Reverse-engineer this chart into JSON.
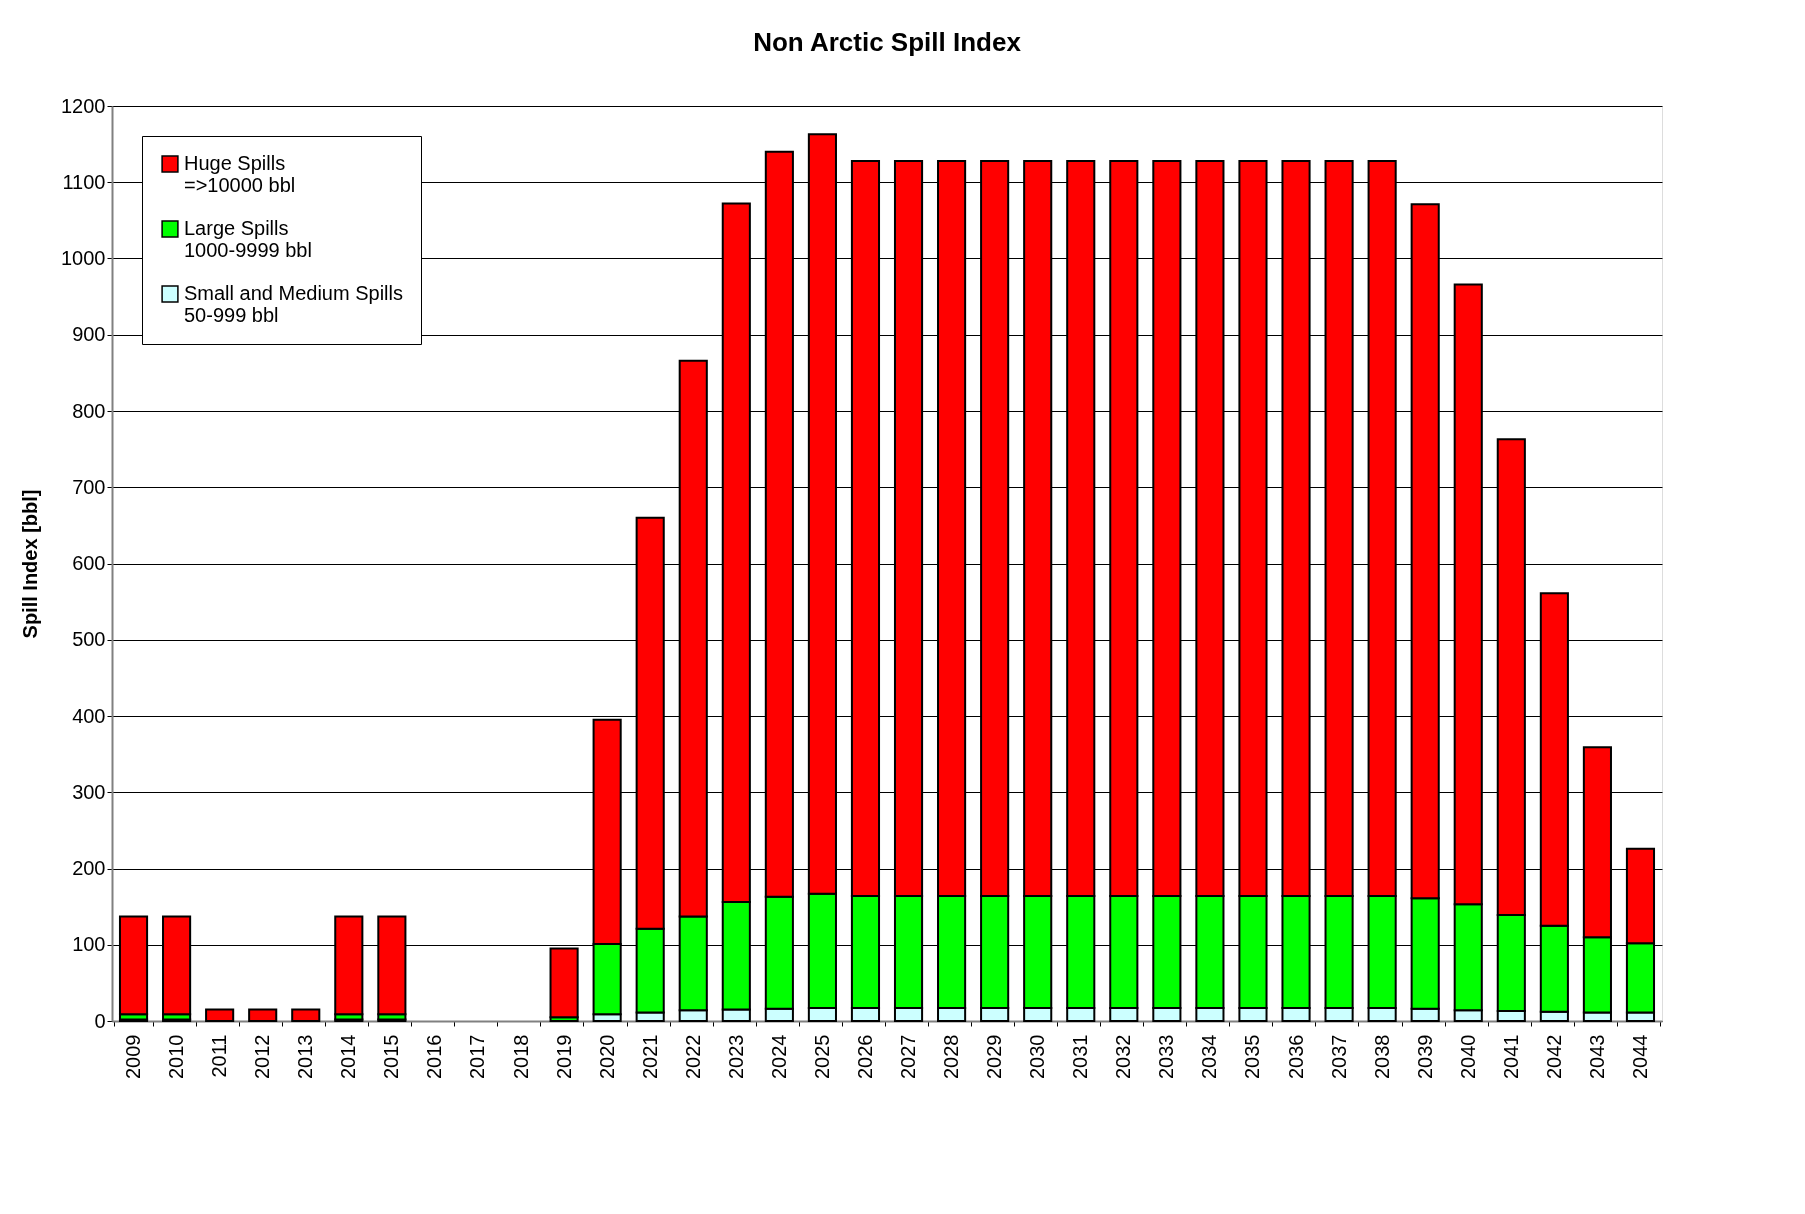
{
  "chart_data": {
    "type": "bar",
    "title": "Non Arctic Spill Index",
    "ylabel": "Spill Index [bbl]",
    "categories": [
      "2009",
      "2010",
      "2011",
      "2012",
      "2013",
      "2014",
      "2015",
      "2016",
      "2017",
      "2018",
      "2019",
      "2020",
      "2021",
      "2022",
      "2023",
      "2024",
      "2025",
      "2026",
      "2027",
      "2028",
      "2029",
      "2030",
      "2031",
      "2032",
      "2033",
      "2034",
      "2035",
      "2036",
      "2037",
      "2038",
      "2039",
      "2040",
      "2041",
      "2042",
      "2043",
      "2044"
    ],
    "stacked": true,
    "series": [
      {
        "name": "Small and Medium Spills\n50-999 bbl",
        "color": "#ccffff",
        "values": [
          2,
          2,
          null,
          null,
          null,
          2,
          2,
          0,
          0,
          0,
          null,
          9,
          11,
          14,
          15,
          16,
          17,
          17,
          17,
          17,
          17,
          17,
          17,
          17,
          17,
          17,
          17,
          17,
          17,
          17,
          16,
          14,
          13,
          12,
          11,
          11
        ]
      },
      {
        "name": "Large Spills\n1000-9999 bbl",
        "color": "#00ff00",
        "values": [
          7,
          7,
          null,
          null,
          null,
          7,
          7,
          0,
          0,
          0,
          5,
          92,
          110,
          123,
          141,
          147,
          150,
          147,
          147,
          147,
          147,
          147,
          147,
          147,
          147,
          147,
          147,
          147,
          147,
          147,
          145,
          139,
          126,
          113,
          99,
          91
        ]
      },
      {
        "name": "Huge Spills\n=>10000 bbl",
        "color": "#ff0000",
        "values": [
          128,
          128,
          15,
          15,
          15,
          128,
          128,
          0,
          0,
          0,
          90,
          294,
          539,
          729,
          916,
          977,
          996,
          964,
          964,
          964,
          964,
          964,
          964,
          964,
          964,
          964,
          964,
          964,
          964,
          964,
          910,
          813,
          624,
          436,
          249,
          124
        ]
      }
    ],
    "ylim": [
      0,
      1200
    ],
    "yticks": [
      0,
      100,
      200,
      300,
      400,
      500,
      600,
      700,
      800,
      900,
      1000,
      1100,
      1200
    ],
    "grid": "y",
    "legend": "top left"
  }
}
